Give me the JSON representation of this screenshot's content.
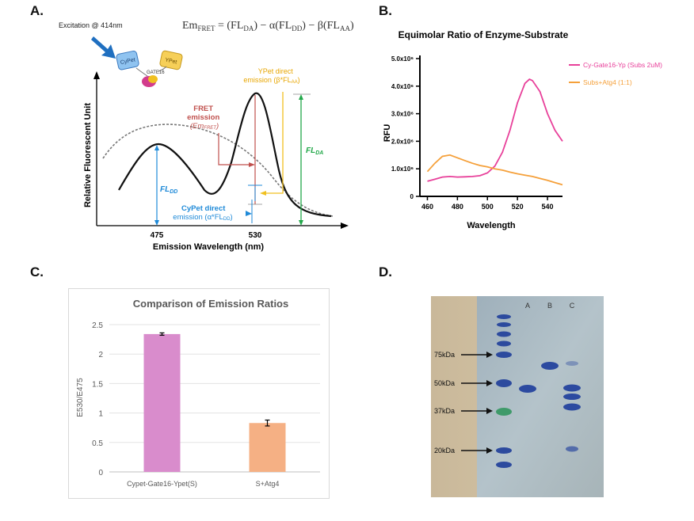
{
  "panels": {
    "a": {
      "label": "A.",
      "equation": {
        "lhs": "Em",
        "lhs_sub": "FRET",
        "eq": " = (FL",
        "t1_sub": "DA",
        "m1": ") − α(FL",
        "t2_sub": "DD",
        "m2": ") − β(FL",
        "t3_sub": "AA",
        "end": ")"
      },
      "excitation": "Excitation @ 414nm",
      "cypet": "CyPet",
      "ypet": "YPet",
      "gate": "GATE16",
      "fret_emission": [
        "FRET",
        "emission"
      ],
      "em_fret": "(Em",
      "em_fret_sub": "FRET",
      "em_fret_end": ")",
      "ypet_direct": [
        "YPet direct",
        "emission (β*FL"
      ],
      "ypet_sub": "AA",
      "ypet_end": ")",
      "fl_da": "FL",
      "fl_da_sub": "DA",
      "fl_dd": "FL",
      "fl_dd_sub": "DD",
      "cypet_direct": [
        "CyPet direct",
        "emission (α*FL"
      ],
      "cypet_sub": "DD",
      "cypet_end": ")",
      "ylabel": "Relative Fluorescent Unit",
      "xlabel": "Emission Wavelength (nm)",
      "ticks": [
        "475",
        "530"
      ]
    },
    "b": {
      "label": "B."
    },
    "c": {
      "label": "C."
    },
    "d": {
      "label": "D.",
      "lanes": [
        "A",
        "B",
        "C"
      ],
      "markers": [
        "75kDa",
        "50kDa",
        "37kDa",
        "20kDa"
      ]
    }
  },
  "chart_data": [
    {
      "type": "line",
      "title": "Equimolar Ratio of Enzyme-Substrate",
      "xlabel": "Wavelength",
      "ylabel": "RFU",
      "xlim": [
        455,
        550
      ],
      "ylim": [
        0,
        5000000
      ],
      "x_ticks": [
        "460",
        "480",
        "500",
        "520",
        "540"
      ],
      "y_ticks": [
        "0",
        "1.0x10⁶",
        "2.0x10⁶",
        "3.0x10⁶",
        "4.0x10⁶",
        "5.0x10⁶"
      ],
      "legend_position": "top-right",
      "series": [
        {
          "name": "Cy-Gate16-Yp (Subs 2uM)",
          "color": "#e8409a",
          "x": [
            460,
            465,
            470,
            475,
            480,
            485,
            490,
            495,
            500,
            505,
            510,
            515,
            520,
            525,
            528,
            530,
            535,
            540,
            545,
            550
          ],
          "y": [
            550000,
            620000,
            700000,
            720000,
            700000,
            710000,
            720000,
            750000,
            850000,
            1100000,
            1600000,
            2400000,
            3400000,
            4100000,
            4250000,
            4200000,
            3800000,
            3000000,
            2400000,
            2000000
          ]
        },
        {
          "name": "Subs+Atg4 (1:1)",
          "color": "#f5a03a",
          "x": [
            460,
            465,
            470,
            475,
            480,
            485,
            490,
            495,
            500,
            505,
            510,
            515,
            520,
            525,
            530,
            535,
            540,
            545,
            550
          ],
          "y": [
            900000,
            1200000,
            1450000,
            1500000,
            1400000,
            1300000,
            1200000,
            1120000,
            1070000,
            1000000,
            950000,
            880000,
            820000,
            770000,
            720000,
            650000,
            580000,
            500000,
            420000
          ]
        }
      ]
    },
    {
      "type": "bar",
      "title": "Comparison of Emission Ratios",
      "xlabel": "",
      "ylabel": "E530/E475",
      "ylim": [
        0,
        2.5
      ],
      "y_ticks": [
        "0",
        "0.5",
        "1",
        "1.5",
        "2",
        "2.5"
      ],
      "grid": true,
      "categories": [
        "Cypet-Gate16-Ypet(S)",
        "S+Atg4"
      ],
      "values": [
        2.34,
        0.83
      ],
      "errors": [
        0.02,
        0.05
      ],
      "colors": [
        "#d98ccc",
        "#f5b084"
      ]
    }
  ]
}
